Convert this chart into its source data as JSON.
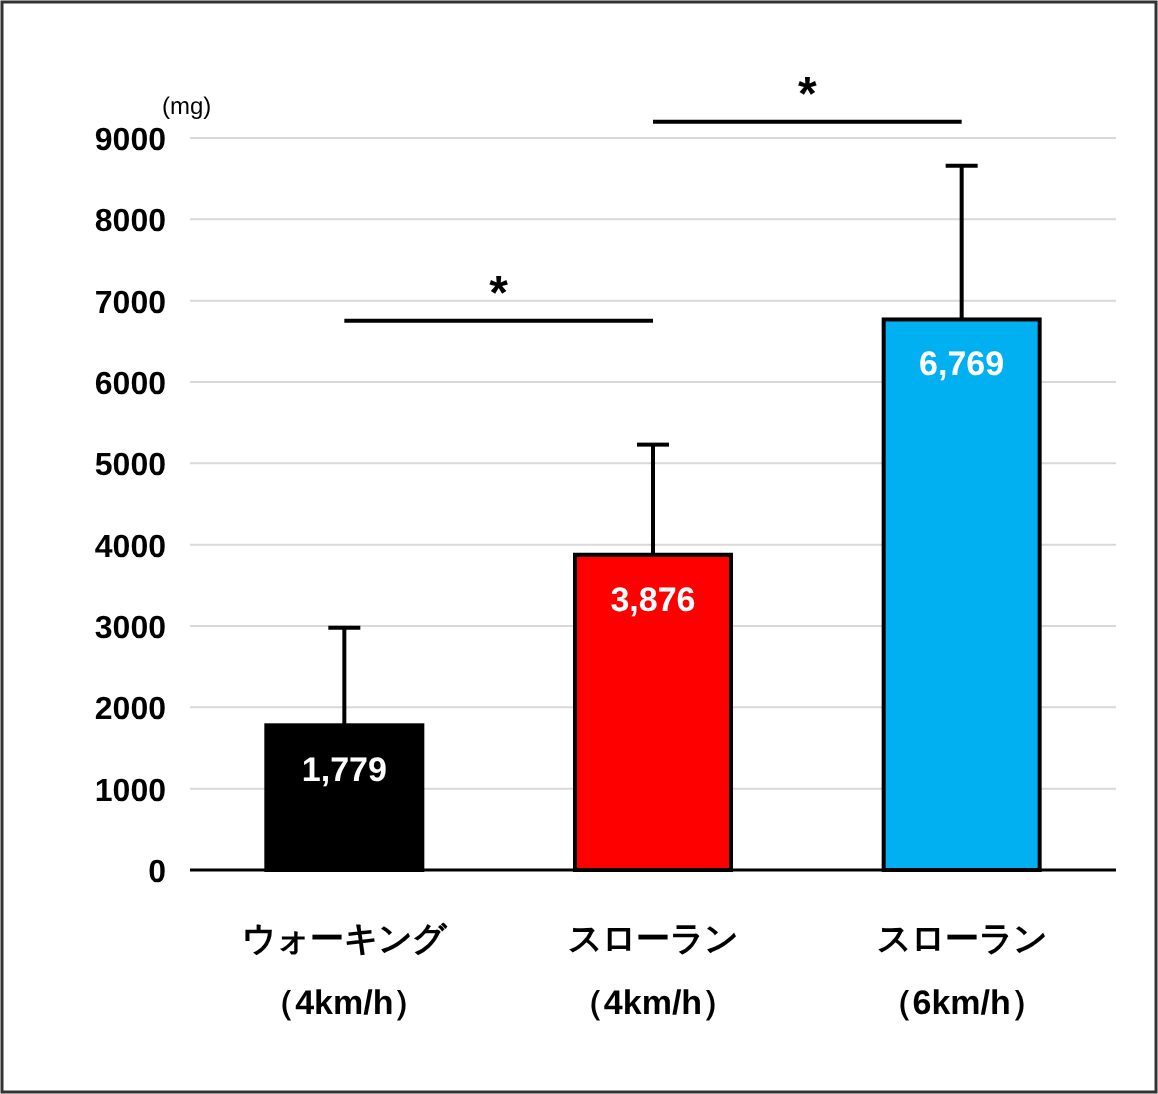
{
  "chart_data": {
    "type": "bar",
    "ylabel": "(mg)",
    "categories": [
      "ウォーキング（4km/h）",
      "スローラン（4km/h）",
      "スローラン（6km/h）"
    ],
    "values": [
      1779,
      3876,
      6769
    ],
    "colors": [
      "#000000",
      "#ff0000",
      "#00b0f0"
    ],
    "value_labels": [
      "1,779",
      "3,876",
      "6,769"
    ],
    "errors": [
      [
        1779,
        2980
      ],
      [
        3876,
        5230
      ],
      [
        6769,
        8660
      ]
    ],
    "ylim": [
      0,
      9000
    ],
    "yticks": [
      0,
      1000,
      2000,
      3000,
      4000,
      5000,
      6000,
      7000,
      8000,
      9000
    ],
    "grid": "y",
    "annotations": [
      "*",
      "*"
    ]
  }
}
